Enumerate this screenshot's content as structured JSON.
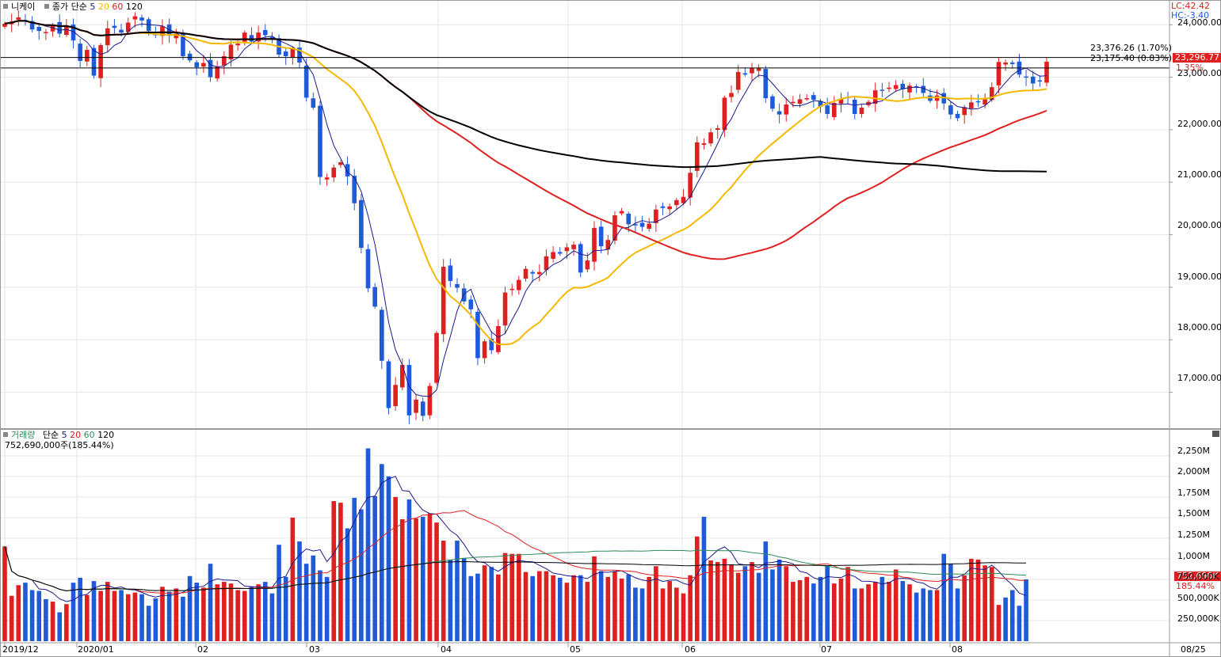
{
  "price_panel": {
    "title": "니케이",
    "ma_label": "종가 단순",
    "ma_periods": [
      "5",
      "20",
      "60",
      "120"
    ],
    "ma_colors": [
      "#1a1a8c",
      "#f5b800",
      "#e02020",
      "#000000"
    ],
    "lc": "LC:42.42",
    "hc": "HC:-3.40",
    "line_high_label": "23,376.26 (1.70%)",
    "line_low_label": "23,175.40 (0.83%)",
    "current_price": "23,296.77",
    "current_change": "1.35%",
    "y_ticks": [
      "24,000.00",
      "23,000.00",
      "22,000.00",
      "21,000.00",
      "20,000.00",
      "19,000.00",
      "18,000.00",
      "17,000.00"
    ]
  },
  "volume_panel": {
    "title": "거래량",
    "ma_label": "단순",
    "ma_periods": [
      "5",
      "20",
      "60",
      "120"
    ],
    "ma_colors": [
      "#1a1a8c",
      "#e02020",
      "#2e8b57",
      "#000000"
    ],
    "current_info": "752,690,000주(185.44%)",
    "current_volume": "752,690K",
    "current_pct": "185.44%",
    "y_ticks": [
      "2,250M",
      "2,000M",
      "1,750M",
      "1,500M",
      "1,250M",
      "1,000M",
      "750,000K",
      "500,000K",
      "250,000K"
    ]
  },
  "x_axis": {
    "ticks": [
      "2019/12",
      "2020/01",
      "02",
      "03",
      "04",
      "05",
      "06",
      "07",
      "08"
    ],
    "last_label": "08/25"
  },
  "colors": {
    "up": "#e02020",
    "down": "#1f5bd8",
    "grid": "#e6e6e6",
    "axis": "#9a9a9a"
  },
  "chart_data": {
    "type": "candlestick",
    "title": "니케이",
    "y_ticks": [
      24000,
      23000,
      22000,
      21000,
      20000,
      19000,
      18000,
      17000
    ],
    "ylim": [
      16330,
      24410
    ],
    "volume_ylim": [
      0,
      2450
    ],
    "volume_unit": "M",
    "last_close": 23296.77,
    "last_volume": 752.69,
    "horizontal_lines": [
      23376.26,
      23175.4
    ],
    "closes": [
      24020,
      24060,
      24140,
      24070,
      23910,
      23880,
      23860,
      23990,
      23830,
      23980,
      23700,
      23310,
      23520,
      23030,
      23610,
      23930,
      23940,
      23850,
      24040,
      24160,
      24080,
      23880,
      23800,
      23970,
      23790,
      23830,
      23400,
      23320,
      23190,
      23270,
      23000,
      23200,
      23400,
      23620,
      23640,
      23850,
      23680,
      23850,
      23800,
      23730,
      23430,
      23400,
      23540,
      23280,
      22610,
      22420,
      21100,
      21090,
      21280,
      21380,
      21110,
      20600,
      19750,
      18980,
      18630,
      17600,
      16700,
      17140,
      17520,
      16560,
      16860,
      16550,
      17120,
      18130,
      19390,
      19120,
      18990,
      18730,
      18580,
      17650,
      17970,
      17800,
      18260,
      18900,
      18970,
      19140,
      19350,
      19260,
      19290,
      19590,
      19670,
      19640,
      19760,
      19810,
      19280,
      19510,
      20130,
      19780,
      19900,
      20370,
      20450,
      20200,
      20180,
      20150,
      20210,
      20480,
      20510,
      20540,
      20660,
      20720,
      21180,
      21760,
      21740,
      21950,
      22030,
      22610,
      22700,
      23100,
      23050,
      23180,
      23170,
      22600,
      22400,
      22290,
      22480,
      22530,
      22580,
      22600,
      22570,
      22440,
      22300,
      22510,
      22590,
      22620,
      22300,
      22420,
      22530,
      22750,
      22740,
      22800,
      22850,
      22770,
      22840,
      22800,
      22700,
      22550,
      22650,
      22500,
      22290,
      22220,
      22430,
      22520,
      22540,
      22580,
      22810,
      23290,
      23280,
      23250,
      23050,
      23000,
      22880,
      22920,
      23296
    ],
    "volumes_M": [
      1150,
      550,
      680,
      710,
      620,
      610,
      510,
      480,
      350,
      450,
      710,
      770,
      560,
      730,
      610,
      720,
      610,
      620,
      570,
      590,
      570,
      430,
      520,
      660,
      600,
      640,
      540,
      790,
      710,
      650,
      940,
      690,
      720,
      700,
      620,
      610,
      660,
      690,
      720,
      580,
      1170,
      780,
      1500,
      1210,
      940,
      1040,
      860,
      780,
      1700,
      1680,
      1370,
      1740,
      1600,
      2340,
      1760,
      2150,
      2000,
      1750,
      1480,
      1720,
      1490,
      1510,
      1550,
      1440,
      1220,
      990,
      1220,
      1010,
      790,
      820,
      920,
      900,
      810,
      1070,
      1060,
      1060,
      840,
      790,
      850,
      850,
      800,
      770,
      710,
      800,
      800,
      720,
      1030,
      850,
      780,
      850,
      760,
      810,
      650,
      640,
      780,
      910,
      640,
      730,
      650,
      580,
      800,
      1270,
      1510,
      980,
      960,
      1000,
      930,
      830,
      910,
      960,
      830,
      1210,
      870,
      990,
      910,
      720,
      740,
      780,
      700,
      780,
      920,
      700,
      760,
      900,
      640,
      640,
      690,
      720,
      780,
      720,
      870,
      730,
      690,
      590,
      640,
      620,
      620,
      1060,
      940,
      640,
      800,
      1000,
      990,
      920,
      900,
      440,
      530,
      620,
      430,
      750
    ]
  }
}
